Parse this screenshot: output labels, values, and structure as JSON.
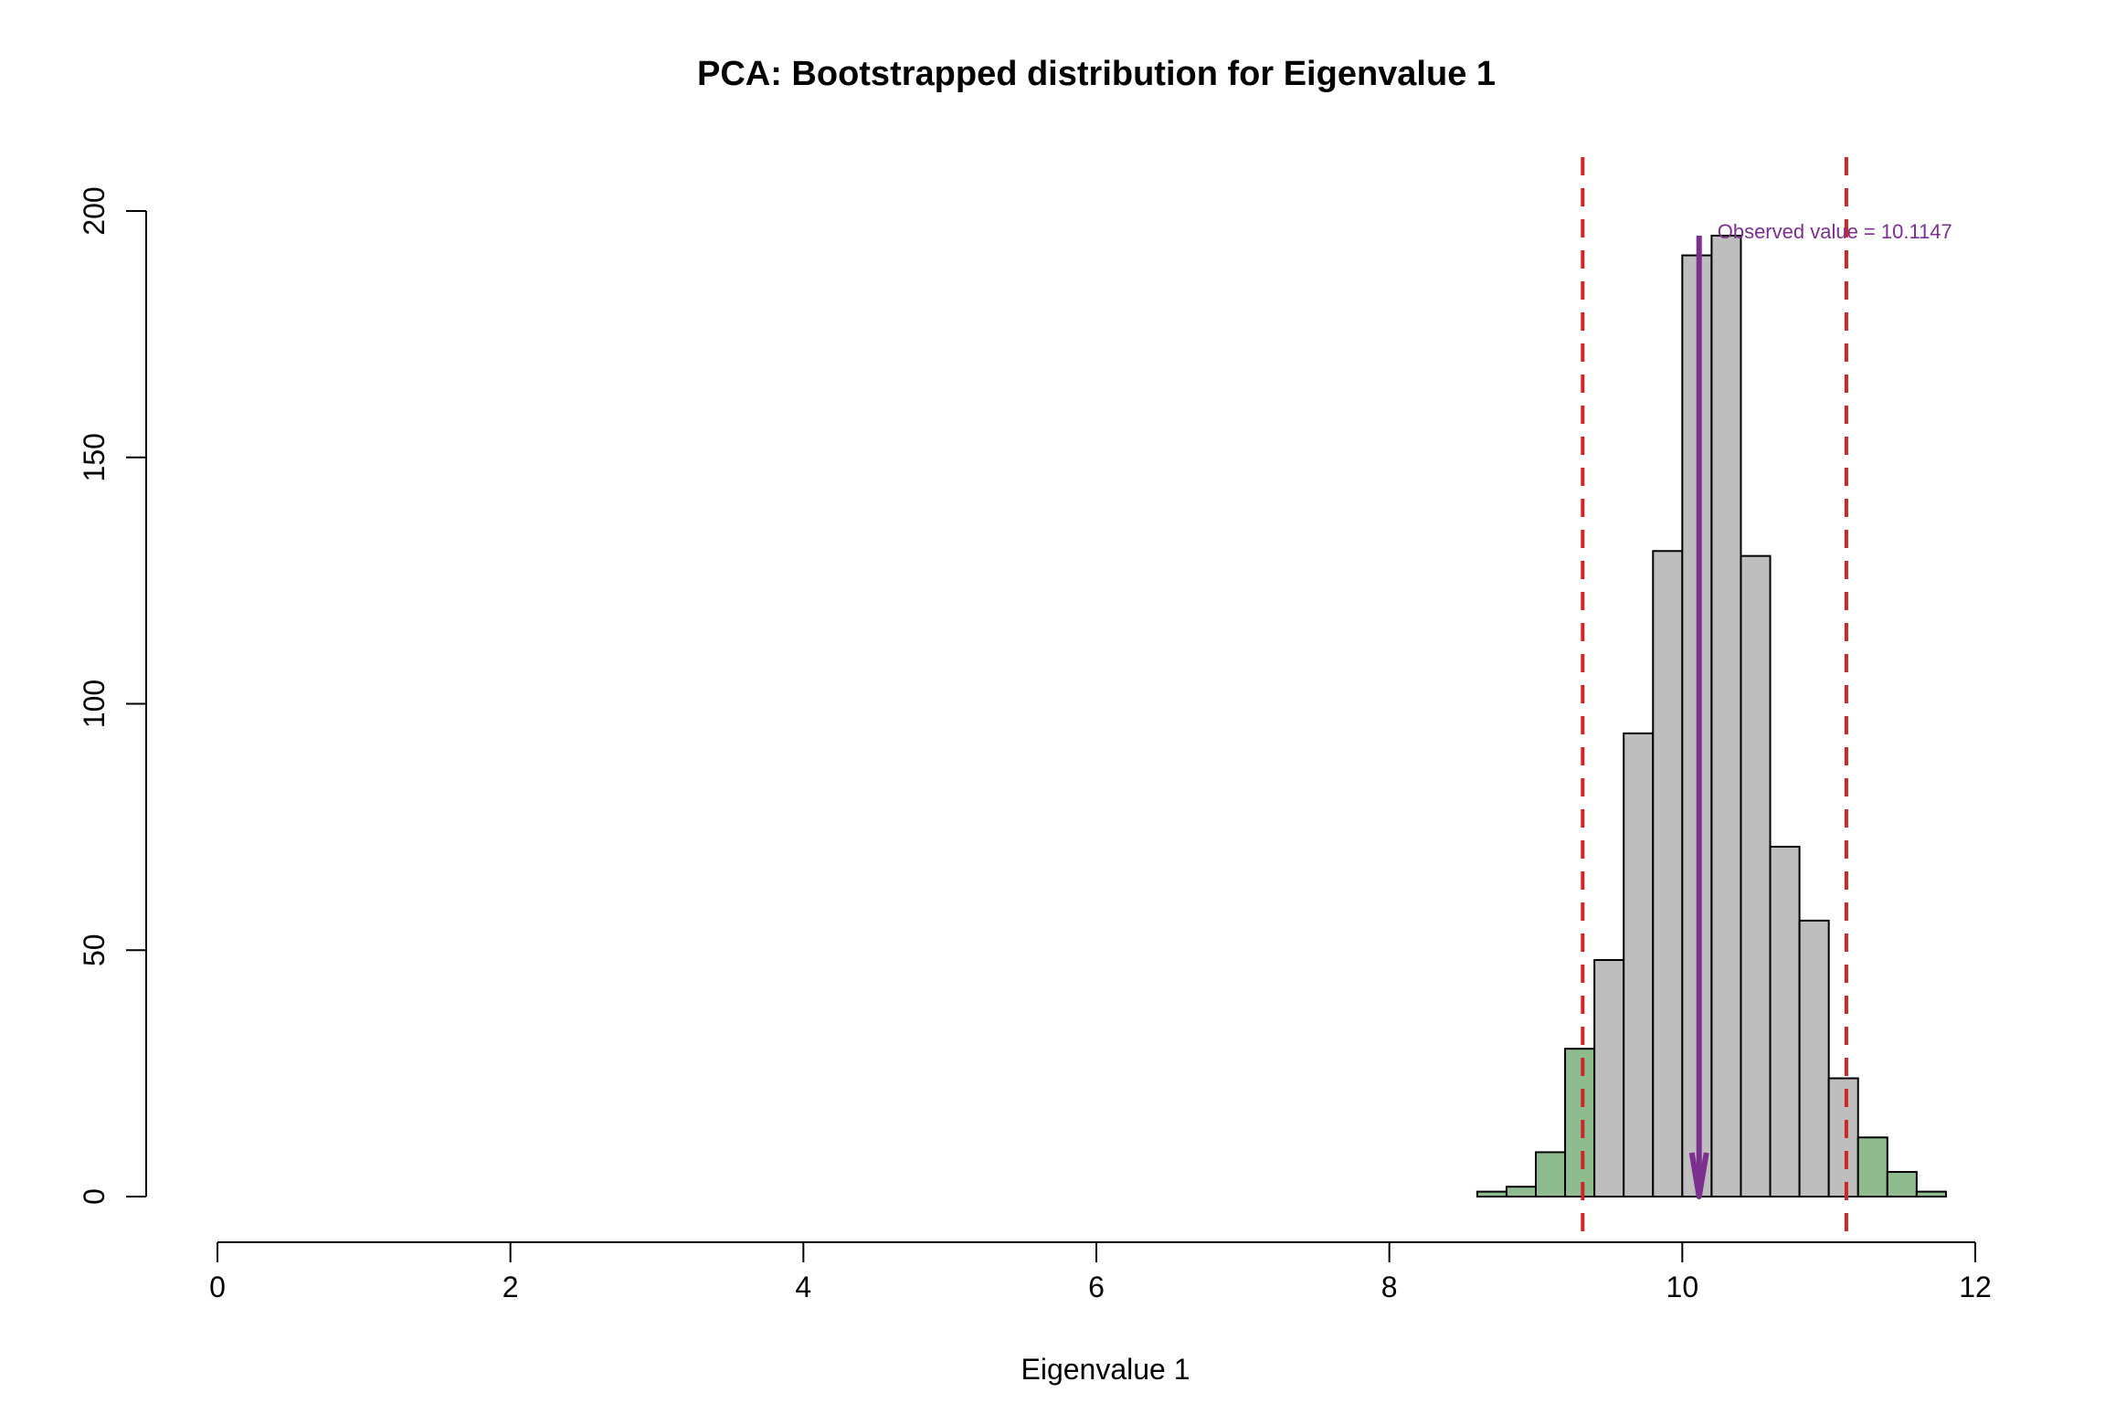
{
  "chart_data": {
    "type": "bar",
    "title": "PCA: Bootstrapped distribution for Eigenvalue 1",
    "xlabel": "Eigenvalue 1",
    "ylabel": "",
    "xlim": [
      0,
      12
    ],
    "ylim": [
      0,
      200
    ],
    "x_ticks": [
      "0",
      "2",
      "4",
      "6",
      "8",
      "10",
      "12"
    ],
    "y_ticks": [
      "0",
      "50",
      "100",
      "150",
      "200"
    ],
    "grid": false,
    "bins": [
      {
        "start": 8.6,
        "end": 8.8,
        "count": 1,
        "region": "tail"
      },
      {
        "start": 8.8,
        "end": 9.0,
        "count": 2,
        "region": "tail"
      },
      {
        "start": 9.0,
        "end": 9.2,
        "count": 9,
        "region": "tail"
      },
      {
        "start": 9.2,
        "end": 9.4,
        "count": 30,
        "region": "tail"
      },
      {
        "start": 9.4,
        "end": 9.6,
        "count": 48,
        "region": "center"
      },
      {
        "start": 9.6,
        "end": 9.8,
        "count": 94,
        "region": "center"
      },
      {
        "start": 9.8,
        "end": 10.0,
        "count": 131,
        "region": "center"
      },
      {
        "start": 10.0,
        "end": 10.2,
        "count": 191,
        "region": "center"
      },
      {
        "start": 10.2,
        "end": 10.4,
        "count": 195,
        "region": "center"
      },
      {
        "start": 10.4,
        "end": 10.6,
        "count": 130,
        "region": "center"
      },
      {
        "start": 10.6,
        "end": 10.8,
        "count": 71,
        "region": "center"
      },
      {
        "start": 10.8,
        "end": 11.0,
        "count": 56,
        "region": "center"
      },
      {
        "start": 11.0,
        "end": 11.2,
        "count": 24,
        "region": "center"
      },
      {
        "start": 11.2,
        "end": 11.4,
        "count": 12,
        "region": "tail"
      },
      {
        "start": 11.4,
        "end": 11.6,
        "count": 5,
        "region": "tail"
      },
      {
        "start": 11.6,
        "end": 11.8,
        "count": 1,
        "region": "tail"
      }
    ],
    "confidence_lines": [
      9.32,
      11.12
    ],
    "observed": {
      "value": 10.1147,
      "label": "Observed value = 10.1147",
      "arrow_top": 195
    },
    "colors": {
      "bar_center": "#bebebe",
      "bar_tail": "#8fbc8f",
      "bar_border": "#000000",
      "ci_line": "#cd2626",
      "observed": "#7b2f8e"
    }
  }
}
